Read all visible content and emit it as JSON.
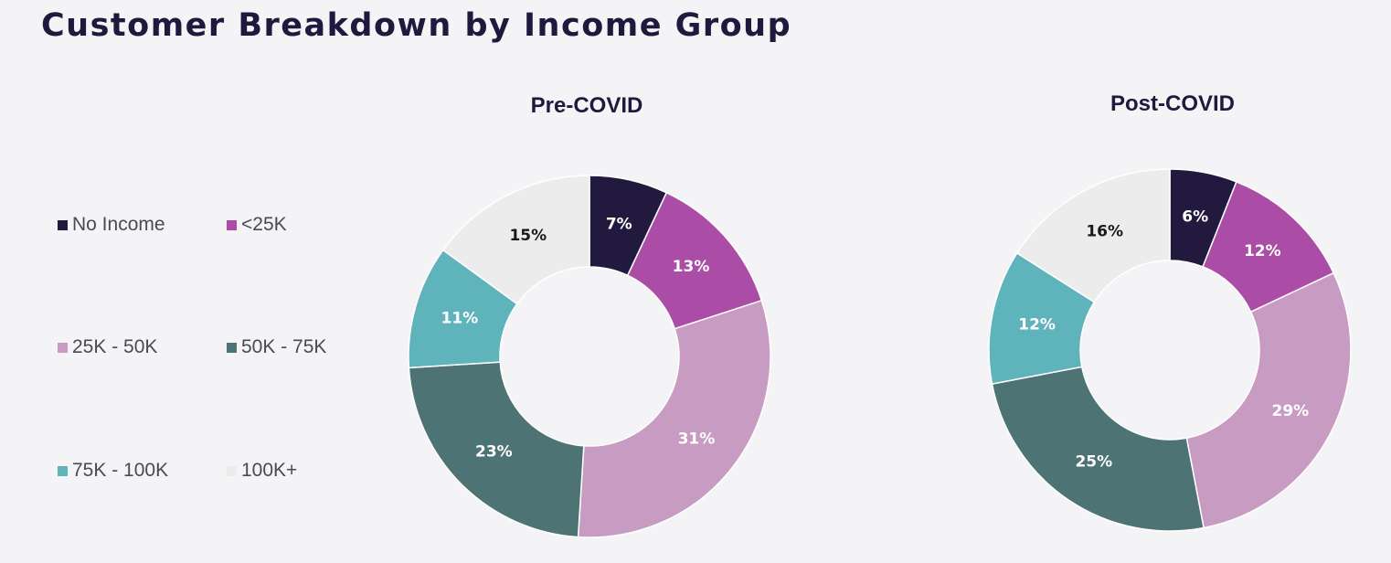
{
  "page": {
    "title": "Customer Breakdown by Income Group"
  },
  "colors": {
    "No Income": "#221a3e",
    "<25K": "#ab4ca6",
    "25K - 50K": "#c79bc2",
    "50K - 75K": "#4d7375",
    "75K - 100K": "#5fb3bb",
    "100K+": "#ececec"
  },
  "legend": [
    {
      "label": "No Income"
    },
    {
      "label": "<25K"
    },
    {
      "label": "25K - 50K"
    },
    {
      "label": "50K - 75K"
    },
    {
      "label": "75K - 100K"
    },
    {
      "label": "100K+"
    }
  ],
  "chart_data": [
    {
      "type": "pie",
      "title": "Pre-COVID",
      "categories": [
        "No Income",
        "<25K",
        "25K - 50K",
        "50K - 75K",
        "75K - 100K",
        "100K+"
      ],
      "values": [
        7,
        13,
        31,
        23,
        11,
        15
      ],
      "labels": [
        "7%",
        "13%",
        "31%",
        "23%",
        "11%",
        "15%"
      ]
    },
    {
      "type": "pie",
      "title": "Post-COVID",
      "categories": [
        "No Income",
        "<25K",
        "25K - 50K",
        "50K - 75K",
        "75K - 100K",
        "100K+"
      ],
      "values": [
        6,
        12,
        29,
        25,
        12,
        16
      ],
      "labels": [
        "6%",
        "12%",
        "29%",
        "25%",
        "12%",
        "16%"
      ]
    }
  ]
}
